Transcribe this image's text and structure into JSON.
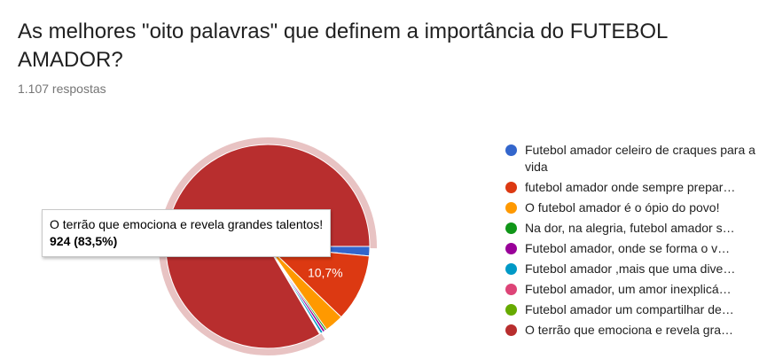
{
  "header": {
    "title": "As melhores \"oito palavras\" que definem a importância do FUTEBOL AMADOR?",
    "responses": "1.107 respostas"
  },
  "tooltip": {
    "label": "O terrão que emociona e revela grandes talentos!",
    "value": "924 (83,5%)"
  },
  "chart_data": {
    "type": "pie",
    "legend_position": "right",
    "slices": [
      {
        "label": "Futebol amador celeiro de craques para a vida",
        "percent": 1.5,
        "color": "#3366cc"
      },
      {
        "label": "futebol amador onde sempre prepar…",
        "percent": 10.7,
        "color": "#dc3912",
        "data_label": "10,7%"
      },
      {
        "label": "O futebol amador é o ópio do povo!",
        "percent": 3.0,
        "color": "#ff9900"
      },
      {
        "label": "Na dor, na alegria, futebol amador s…",
        "percent": 0.3,
        "color": "#109618"
      },
      {
        "label": "Futebol amador, onde se forma o v…",
        "percent": 0.4,
        "color": "#990099"
      },
      {
        "label": "Futebol amador ,mais que uma dive…",
        "percent": 0.4,
        "color": "#0099c6"
      },
      {
        "label": "Futebol amador, um amor inexplicá…",
        "percent": 0.1,
        "color": "#dd4477"
      },
      {
        "label": "Futebol amador um compartilhar de…",
        "percent": 0.1,
        "color": "#66aa00"
      },
      {
        "label": "O terrão que emociona e revela gra…",
        "percent": 83.5,
        "color": "#b82e2e",
        "value": 924,
        "highlighted": true
      }
    ]
  }
}
